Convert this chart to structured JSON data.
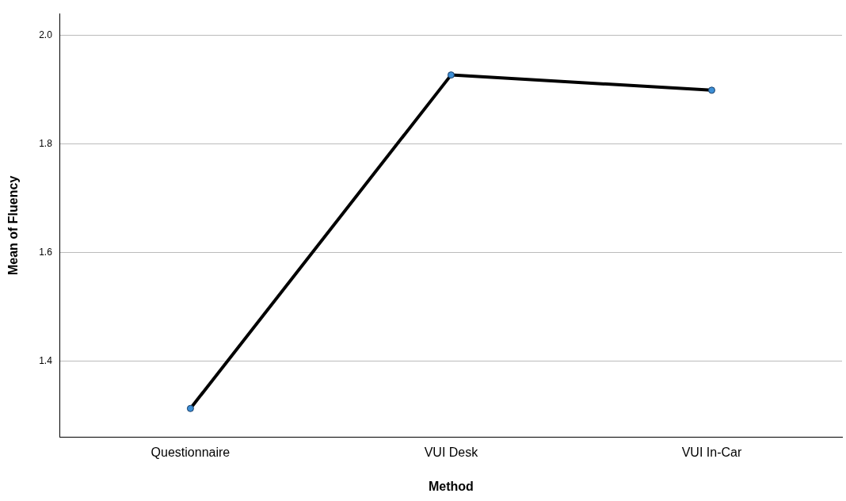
{
  "chart_data": {
    "type": "line",
    "xlabel": "Method",
    "ylabel": "Mean of Fluency",
    "categories": [
      "Questionnaire",
      "VUI Desk",
      "VUI In-Car"
    ],
    "series": [
      {
        "color": "#000000",
        "values": [
          1.313,
          1.927,
          1.899
        ]
      }
    ],
    "ylim": [
      1.26,
      2.04
    ],
    "yticks": [
      1.4,
      1.6,
      1.8,
      {
        "value": 2,
        "label": "2.0"
      }
    ],
    "grid": "y",
    "legend": false,
    "marker": "circle",
    "line_style": "solid"
  }
}
